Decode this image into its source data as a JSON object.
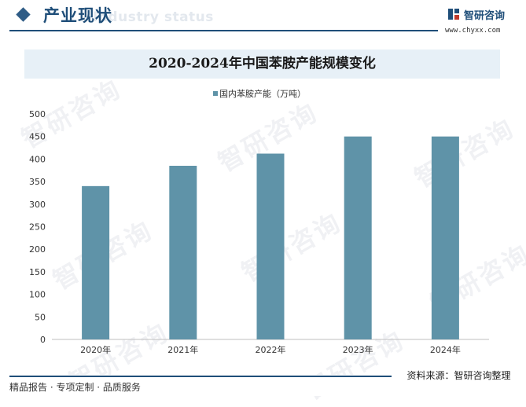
{
  "header": {
    "section_title": "产业现状",
    "ghost_text": "Industry status",
    "brand_name": "智研咨询",
    "brand_url": "www.chyxx.com"
  },
  "chart_data": {
    "type": "bar",
    "title": "2020-2024年中国苯胺产能规模变化",
    "categories": [
      "2020年",
      "2021年",
      "2022年",
      "2023年",
      "2024年"
    ],
    "series": [
      {
        "name": "国内苯胺产能（万吨）",
        "values": [
          340,
          385,
          412,
          450,
          450
        ]
      }
    ],
    "ylim": [
      0,
      500
    ],
    "yticks": [
      0,
      50,
      100,
      150,
      200,
      250,
      300,
      350,
      400,
      450,
      500
    ],
    "xlabel": "",
    "ylabel": "",
    "legend": "top-center",
    "grid": false,
    "bar_color": "#5f93a8"
  },
  "footer": {
    "left_text": "精品报告 · 专项定制 · 品质服务",
    "right_text": "资料来源：智研咨询整理"
  },
  "watermark": {
    "text": "智研咨询"
  },
  "colors": {
    "primary": "#1f4e79",
    "bar": "#5f93a8",
    "title_band": "#e7f0f7"
  }
}
